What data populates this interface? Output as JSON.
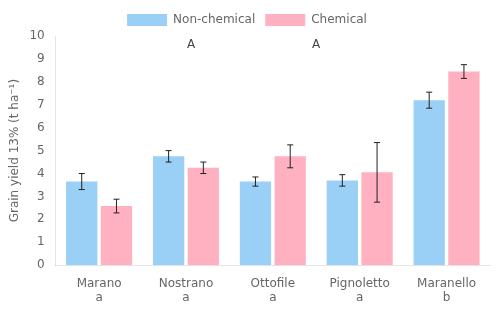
{
  "chart_data": {
    "type": "bar",
    "categories": [
      "Marano\na",
      "Nostrano\na",
      "Ottofile\na",
      "Pignoletto\na",
      "Maranello\nb"
    ],
    "series": [
      {
        "name": "Non-chemical",
        "values": [
          3.65,
          4.75,
          3.65,
          3.7,
          7.2
        ],
        "errors": [
          0.35,
          0.25,
          0.2,
          0.25,
          0.35
        ]
      },
      {
        "name": "Chemical",
        "values": [
          2.58,
          4.25,
          4.75,
          4.05,
          8.45
        ],
        "errors": [
          0.3,
          0.25,
          0.5,
          1.3,
          0.3
        ]
      }
    ],
    "ylabel": "Grain yield 13% (t ha⁻¹)",
    "ylim": [
      0,
      10
    ],
    "yticks": [
      0,
      1,
      2,
      3,
      4,
      5,
      6,
      7,
      8,
      9,
      10
    ],
    "annotations": [
      "A",
      "A"
    ],
    "legend": "top",
    "grid": false
  }
}
